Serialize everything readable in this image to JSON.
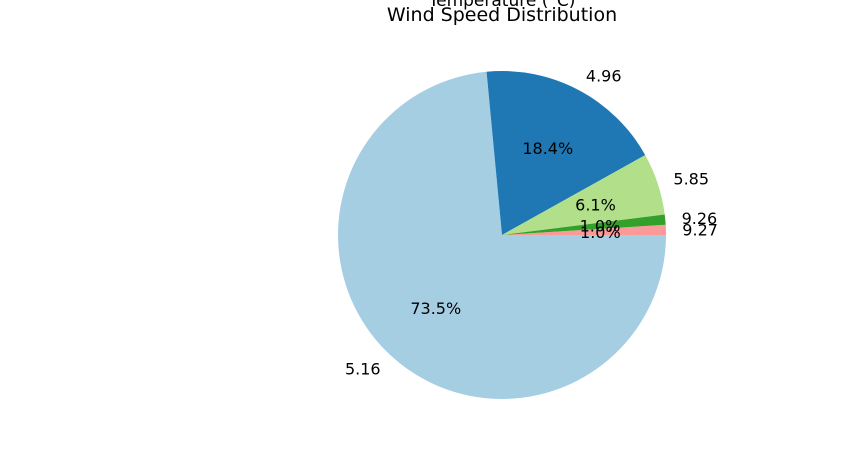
{
  "chart_data": {
    "type": "pie",
    "title": "Wind Speed Distribution",
    "subtitle": "Temperature (°C)",
    "categories": [
      "9.27",
      "5.16",
      "4.96",
      "5.85",
      "9.26"
    ],
    "values": [
      1.0,
      73.5,
      18.4,
      6.1,
      1.0
    ],
    "percent_labels": [
      "1.0%",
      "73.5%",
      "18.4%",
      "6.1%",
      "1.0%"
    ],
    "colors": [
      "#fb9a99",
      "#a6cee3",
      "#1f78b4",
      "#b2df8a",
      "#33a02c"
    ],
    "legend": "none"
  }
}
